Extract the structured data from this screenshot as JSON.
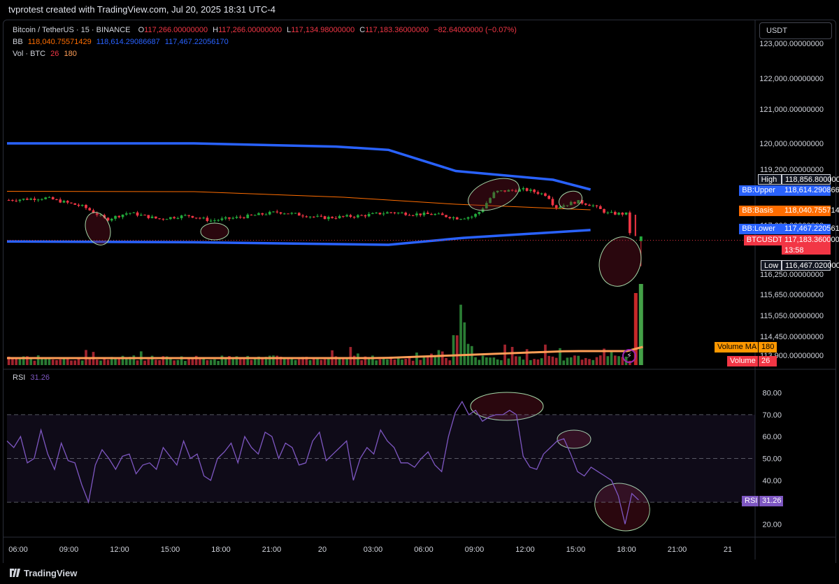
{
  "header": {
    "title": "tvprotest created with TradingView.com, Jul 20, 2025 18:31 UTC-4"
  },
  "legend": {
    "symbol": "Bitcoin / TetherUS · 15 · BINANCE",
    "ohlc": {
      "o_key": "O",
      "o": "117,266.00000000",
      "h_key": "H",
      "h": "117,266.00000000",
      "l_key": "L",
      "l": "117,134.98000000",
      "c_key": "C",
      "c": "117,183.36000000",
      "change": "−82.64000000 (−0.07%)"
    },
    "bb": {
      "label": "BB",
      "basis": "118,040.75571429",
      "upper": "118,614.29086687",
      "lower": "117,467.22056170"
    },
    "vol": {
      "label": "Vol · BTC",
      "value": "26",
      "ma": "180"
    },
    "rsi": {
      "label": "RSI",
      "value": "31.26"
    }
  },
  "currency": "USDT",
  "price_axis": {
    "ticks": [
      "123,000.00000000",
      "122,000.00000000",
      "121,000.00000000",
      "120,000.00000000",
      "119,200.00000000",
      "117,600.00000000",
      "116,250.00000000",
      "115,650.00000000",
      "115,050.00000000",
      "114,450.00000000",
      "113,900.00000000"
    ],
    "tick_values": [
      123000,
      122000,
      121000,
      120000,
      119200,
      117600,
      116250,
      115650,
      115050,
      114450,
      113900
    ]
  },
  "price_tags": [
    {
      "label": "High",
      "value": "118,856.80000000",
      "color": "#131722",
      "border": "#d1d4dc"
    },
    {
      "label": "BB:Upper",
      "value": "118,614.29086687",
      "color": "#2962ff"
    },
    {
      "label": "BB:Basis",
      "value": "118,040.75571429",
      "color": "#ff6d00"
    },
    {
      "label": "BB:Lower",
      "value": "117,467.22056170",
      "color": "#2962ff"
    },
    {
      "label": "BTCUSDT",
      "value": "117,183.36000000",
      "sub": "13:58",
      "color": "#f23645"
    },
    {
      "label": "Low",
      "value": "116,467.02000000",
      "color": "#131722",
      "border": "#d1d4dc"
    }
  ],
  "volume_tags": [
    {
      "label": "Volume MA",
      "value": "180",
      "color": "#ff9800"
    },
    {
      "label": "Volume",
      "value": "26",
      "color": "#f23645"
    }
  ],
  "rsi_axis": {
    "ticks": [
      "80.00",
      "70.00",
      "60.00",
      "50.00",
      "40.00",
      "30.00",
      "20.00"
    ],
    "tick_values": [
      80,
      70,
      60,
      50,
      40,
      30,
      20
    ],
    "tag_label": "RSI",
    "tag_value": "31.26"
  },
  "time_axis": {
    "labels": [
      "06:00",
      "09:00",
      "12:00",
      "15:00",
      "18:00",
      "21:00",
      "20",
      "03:00",
      "06:00",
      "09:00",
      "12:00",
      "15:00",
      "18:00",
      "21:00",
      "21"
    ]
  },
  "footer": {
    "brand": "TradingView"
  },
  "colors": {
    "bb_band": "#2962ff",
    "bb_basis": "#ff6d00",
    "up": "#26a69a",
    "up_bright": "#22ab3c",
    "down": "#f23645",
    "rsi_line": "#7e57c2",
    "volume_ma": "#ff9e57",
    "annotation": "#a5d6a7"
  },
  "chart_data": [
    {
      "type": "candlestick",
      "title": "Bitcoin / TetherUS · 15 · BINANCE",
      "ylim": [
        113900,
        123200
      ],
      "bb_upper_path": [
        [
          0,
          120000
        ],
        [
          0.25,
          120000
        ],
        [
          0.44,
          119900
        ],
        [
          0.51,
          119800
        ],
        [
          0.6,
          119150
        ],
        [
          0.73,
          118900
        ],
        [
          0.78,
          118620
        ]
      ],
      "bb_basis_path": [
        [
          0,
          118570
        ],
        [
          0.25,
          118560
        ],
        [
          0.45,
          118400
        ],
        [
          0.6,
          118200
        ],
        [
          0.78,
          118040
        ]
      ],
      "bb_lower_path": [
        [
          0,
          117150
        ],
        [
          0.25,
          117130
        ],
        [
          0.51,
          117060
        ],
        [
          0.61,
          117250
        ],
        [
          0.78,
          117467
        ]
      ],
      "close_path": [
        [
          0,
          118320
        ],
        [
          0.05,
          118380
        ],
        [
          0.1,
          118130
        ],
        [
          0.13,
          117760
        ],
        [
          0.16,
          117960
        ],
        [
          0.2,
          117780
        ],
        [
          0.24,
          117880
        ],
        [
          0.27,
          117730
        ],
        [
          0.31,
          117830
        ],
        [
          0.36,
          117980
        ],
        [
          0.42,
          117810
        ],
        [
          0.47,
          117870
        ],
        [
          0.51,
          117970
        ],
        [
          0.54,
          117920
        ],
        [
          0.57,
          117910
        ],
        [
          0.6,
          117800
        ],
        [
          0.62,
          117850
        ],
        [
          0.63,
          118000
        ],
        [
          0.65,
          118560
        ],
        [
          0.69,
          118620
        ],
        [
          0.72,
          118460
        ],
        [
          0.73,
          118110
        ],
        [
          0.76,
          118280
        ],
        [
          0.78,
          118170
        ],
        [
          0.8,
          117940
        ],
        [
          0.83,
          117920
        ],
        [
          0.83,
          117400
        ],
        [
          0.84,
          117183
        ]
      ],
      "high": 118856.8,
      "low": 116467.02,
      "last": 117183.36
    },
    {
      "type": "bar",
      "title": "Vol · BTC",
      "series_name": "Volume",
      "ma_name": "Volume MA",
      "values_hint": "mostly small bars with spikes near sessions; large spike at final bars",
      "ma_last": 180,
      "last": 26
    },
    {
      "type": "line",
      "title": "RSI",
      "ylim": [
        15,
        85
      ],
      "band": [
        30,
        70
      ],
      "values": [
        58,
        55,
        60,
        48,
        50,
        63,
        52,
        45,
        57,
        49,
        48,
        38,
        30,
        47,
        54,
        50,
        45,
        51,
        52,
        43,
        47,
        48,
        45,
        55,
        51,
        47,
        58,
        50,
        52,
        42,
        40,
        50,
        53,
        57,
        48,
        60,
        55,
        52,
        62,
        60,
        50,
        57,
        55,
        47,
        48,
        58,
        62,
        49,
        52,
        55,
        58,
        40,
        50,
        55,
        52,
        63,
        58,
        55,
        48,
        48,
        46,
        50,
        53,
        47,
        44,
        60,
        71,
        76,
        70,
        72,
        67,
        69,
        70,
        70,
        72,
        70,
        51,
        46,
        45,
        52,
        55,
        58,
        59,
        52,
        44,
        42,
        46,
        44,
        42,
        40,
        33,
        20,
        34,
        31
      ],
      "last": 31.26
    }
  ]
}
